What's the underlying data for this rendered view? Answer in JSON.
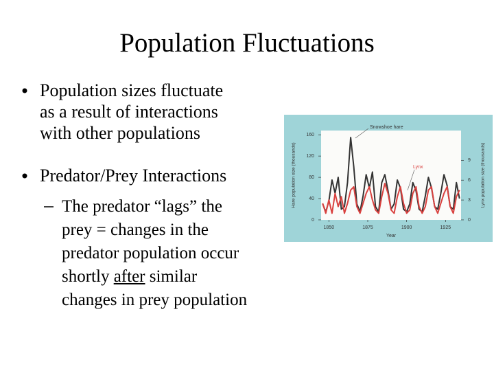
{
  "title": "Population Fluctuations",
  "bullets": [
    {
      "lines": [
        "Population sizes fluctuate",
        "as a result of interactions",
        "with other populations"
      ]
    },
    {
      "lines": [
        "Predator/Prey Interactions"
      ]
    }
  ],
  "sub_bullet": {
    "lines": [
      "The predator “lags” the",
      "prey = changes in the",
      "predator population occur",
      [
        "shortly ",
        "after",
        " similar"
      ],
      "changes in prey population"
    ]
  },
  "chart_data": {
    "type": "line",
    "xlabel": "Year",
    "ylabel": "Hare population size (thousands)",
    "y2label": "Lynx population size (thousands)",
    "x": [
      1846,
      1848,
      1850,
      1852,
      1854,
      1856,
      1858,
      1860,
      1862,
      1864,
      1866,
      1868,
      1870,
      1872,
      1874,
      1876,
      1878,
      1880,
      1882,
      1884,
      1886,
      1888,
      1890,
      1892,
      1894,
      1896,
      1898,
      1900,
      1902,
      1904,
      1906,
      1908,
      1910,
      1912,
      1914,
      1916,
      1918,
      1920,
      1922,
      1924,
      1926,
      1928,
      1930,
      1932,
      1934
    ],
    "series": [
      {
        "name": "Snowshoe hare",
        "color": "#333333",
        "values": [
          30,
          15,
          35,
          75,
          50,
          80,
          20,
          25,
          70,
          155,
          100,
          30,
          15,
          45,
          85,
          60,
          90,
          25,
          15,
          70,
          85,
          55,
          20,
          30,
          75,
          60,
          20,
          15,
          30,
          70,
          55,
          20,
          15,
          45,
          80,
          60,
          25,
          20,
          50,
          85,
          65,
          25,
          20,
          70,
          40
        ]
      },
      {
        "name": "Lynx",
        "color": "#d9413f",
        "axis": "y2",
        "values": [
          2.5,
          1,
          3,
          1,
          4,
          2,
          3.5,
          1,
          2.5,
          4.5,
          5,
          2,
          1,
          2.5,
          4,
          5,
          3,
          1.5,
          1,
          3.5,
          5.5,
          4,
          1.5,
          1,
          3.5,
          5,
          2.5,
          1,
          1.5,
          4,
          5,
          2,
          1,
          2,
          4.5,
          5,
          2,
          1,
          2.5,
          4,
          5,
          2,
          1,
          3.5,
          4.5
        ]
      }
    ],
    "xlim": [
      1845,
      1935
    ],
    "xticks": [
      1850,
      1875,
      1900,
      1925
    ],
    "ylim": [
      0,
      168
    ],
    "yticks": [
      0,
      40,
      80,
      120,
      160
    ],
    "y2lim": [
      0,
      13.5
    ],
    "y2ticks": [
      0,
      3,
      6,
      9
    ]
  }
}
